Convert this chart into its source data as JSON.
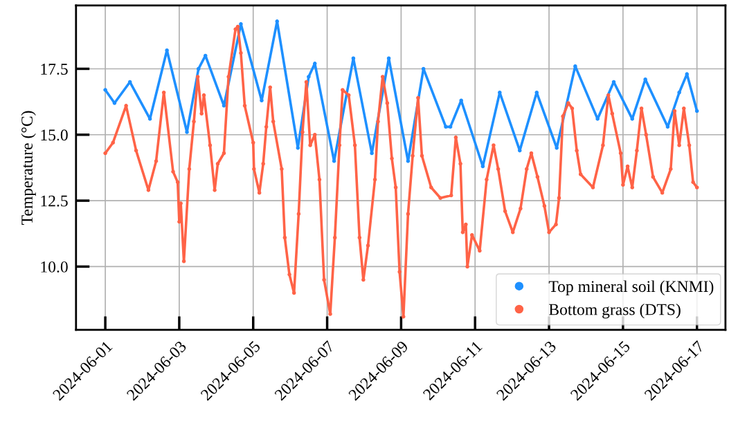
{
  "chart_data": {
    "type": "line",
    "ylabel": "Temperature (°C)",
    "marker": "circle",
    "grid": true,
    "legend": "bottom right",
    "xlim": [
      "2024-05-31T05:00",
      "2024-06-17T18:30"
    ],
    "xticks": [
      "2024-06-01",
      "2024-06-03",
      "2024-06-05",
      "2024-06-07",
      "2024-06-09",
      "2024-06-11",
      "2024-06-13",
      "2024-06-15",
      "2024-06-17"
    ],
    "ylim": [
      7.6,
      19.9
    ],
    "yticks": [
      {
        "value": 10,
        "label": "10.0"
      },
      {
        "value": 12.5,
        "label": "12.5"
      },
      {
        "value": 15,
        "label": "15.0"
      },
      {
        "value": 17.5,
        "label": "17.5"
      }
    ],
    "series": [
      {
        "name": "Top mineral soil (KNMI)",
        "color": "#1e90ff",
        "x": [
          "2024-06-01T00:00",
          "2024-06-01T06:00",
          "2024-06-01T16:00",
          "2024-06-02T05:00",
          "2024-06-02T16:00",
          "2024-06-03T05:00",
          "2024-06-03T12:30",
          "2024-06-03T17:00",
          "2024-06-04T05:00",
          "2024-06-04T16:00",
          "2024-06-05T05:30",
          "2024-06-05T15:30",
          "2024-06-06T05:00",
          "2024-06-06T12:00",
          "2024-06-06T16:00",
          "2024-06-07T04:30",
          "2024-06-07T17:00",
          "2024-06-08T05:00",
          "2024-06-08T16:00",
          "2024-06-09T04:30",
          "2024-06-09T14:30",
          "2024-06-10T05:00",
          "2024-06-10T08:00",
          "2024-06-10T15:00",
          "2024-06-11T05:00",
          "2024-06-11T16:00",
          "2024-06-12T05:00",
          "2024-06-12T16:00",
          "2024-06-13T05:00",
          "2024-06-13T17:00",
          "2024-06-14T07:30",
          "2024-06-14T18:00",
          "2024-06-15T06:00",
          "2024-06-15T14:30",
          "2024-06-16T05:00",
          "2024-06-16T12:30",
          "2024-06-16T17:30",
          "2024-06-17T00:00"
        ],
        "values": [
          16.7,
          16.2,
          17.0,
          15.6,
          18.2,
          15.1,
          17.5,
          18.0,
          16.1,
          19.2,
          16.3,
          19.3,
          14.5,
          17.2,
          17.7,
          14.0,
          17.9,
          14.3,
          17.9,
          14.0,
          17.5,
          15.3,
          15.3,
          16.3,
          13.8,
          16.6,
          14.4,
          16.6,
          14.5,
          17.6,
          15.6,
          17.0,
          15.6,
          17.1,
          15.3,
          16.6,
          17.3,
          15.9
        ]
      },
      {
        "name": "Bottom grass (DTS)",
        "color": "#ff6347",
        "x": [
          "2024-06-01T00:00",
          "2024-06-01T05:00",
          "2024-06-01T13:30",
          "2024-06-01T20:00",
          "2024-06-02T04:00",
          "2024-06-02T09:00",
          "2024-06-02T14:00",
          "2024-06-02T20:00",
          "2024-06-02T23:00",
          "2024-06-03T00:00",
          "2024-06-03T01:00",
          "2024-06-03T03:00",
          "2024-06-03T06:30",
          "2024-06-03T09:30",
          "2024-06-03T12:00",
          "2024-06-03T14:30",
          "2024-06-03T16:00",
          "2024-06-03T20:00",
          "2024-06-03T23:00",
          "2024-06-04T01:00",
          "2024-06-04T05:00",
          "2024-06-04T08:00",
          "2024-06-04T12:30",
          "2024-06-04T14:00",
          "2024-06-04T16:00",
          "2024-06-04T18:30",
          "2024-06-05T00:00",
          "2024-06-05T00:30",
          "2024-06-05T04:00",
          "2024-06-05T06:30",
          "2024-06-05T08:30",
          "2024-06-05T11:00",
          "2024-06-05T13:00",
          "2024-06-05T18:30",
          "2024-06-05T20:30",
          "2024-06-05T23:30",
          "2024-06-06T02:30",
          "2024-06-06T05:30",
          "2024-06-06T08:00",
          "2024-06-06T10:30",
          "2024-06-06T13:00",
          "2024-06-06T16:00",
          "2024-06-06T19:00",
          "2024-06-06T22:00",
          "2024-06-07T02:00",
          "2024-06-07T05:00",
          "2024-06-07T08:00",
          "2024-06-07T10:00",
          "2024-06-07T14:00",
          "2024-06-07T18:00",
          "2024-06-07T21:00",
          "2024-06-07T23:30",
          "2024-06-08T02:30",
          "2024-06-08T07:00",
          "2024-06-08T09:00",
          "2024-06-08T12:00",
          "2024-06-08T15:00",
          "2024-06-08T18:00",
          "2024-06-08T20:30",
          "2024-06-08T23:00",
          "2024-06-09T01:30",
          "2024-06-09T04:30",
          "2024-06-09T07:30",
          "2024-06-09T11:00",
          "2024-06-09T13:30",
          "2024-06-09T19:30",
          "2024-06-10T01:30",
          "2024-06-10T08:30",
          "2024-06-10T11:30",
          "2024-06-10T14:30",
          "2024-06-10T16:00",
          "2024-06-10T18:00",
          "2024-06-10T19:00",
          "2024-06-10T22:00",
          "2024-06-11T03:00",
          "2024-06-11T07:30",
          "2024-06-11T12:00",
          "2024-06-11T15:00",
          "2024-06-11T19:30",
          "2024-06-12T00:30",
          "2024-06-12T05:30",
          "2024-06-12T09:30",
          "2024-06-12T12:30",
          "2024-06-12T16:30",
          "2024-06-12T21:00",
          "2024-06-13T00:00",
          "2024-06-13T04:30",
          "2024-06-13T06:30",
          "2024-06-13T09:00",
          "2024-06-13T12:30",
          "2024-06-13T15:00",
          "2024-06-13T18:00",
          "2024-06-13T20:30",
          "2024-06-14T04:30",
          "2024-06-14T11:00",
          "2024-06-14T14:30",
          "2024-06-14T17:00",
          "2024-06-14T22:30",
          "2024-06-15T00:00",
          "2024-06-15T03:00",
          "2024-06-15T06:00",
          "2024-06-15T09:00",
          "2024-06-15T12:00",
          "2024-06-15T15:00",
          "2024-06-15T19:30",
          "2024-06-16T01:30",
          "2024-06-16T07:00",
          "2024-06-16T09:30",
          "2024-06-16T12:30",
          "2024-06-16T15:30",
          "2024-06-16T19:00",
          "2024-06-16T21:30",
          "2024-06-17T00:00"
        ],
        "values": [
          14.3,
          14.7,
          16.1,
          14.4,
          12.9,
          14.0,
          16.6,
          13.6,
          13.2,
          11.7,
          12.4,
          10.2,
          13.7,
          15.5,
          17.2,
          15.8,
          16.5,
          14.6,
          12.9,
          13.9,
          14.3,
          17.2,
          19.0,
          19.1,
          18.1,
          16.1,
          14.7,
          13.7,
          12.8,
          13.9,
          15.3,
          16.8,
          15.5,
          13.7,
          11.1,
          9.7,
          9.0,
          12.0,
          15.1,
          17.0,
          14.6,
          15.0,
          13.3,
          9.5,
          8.2,
          11.1,
          14.6,
          16.7,
          16.5,
          14.6,
          11.1,
          9.5,
          10.8,
          13.3,
          15.5,
          17.2,
          16.2,
          14.1,
          13.0,
          9.8,
          8.1,
          12.0,
          14.2,
          16.4,
          14.2,
          13.0,
          12.6,
          12.7,
          14.9,
          13.9,
          11.3,
          11.6,
          10.0,
          11.2,
          10.6,
          13.3,
          14.6,
          13.7,
          12.1,
          11.3,
          12.2,
          13.7,
          14.3,
          13.4,
          12.3,
          11.3,
          11.6,
          12.6,
          15.7,
          16.2,
          16.0,
          14.4,
          13.5,
          13.0,
          14.6,
          16.5,
          15.8,
          14.3,
          13.1,
          13.8,
          13.0,
          14.4,
          16.0,
          15.0,
          13.4,
          12.8,
          13.7,
          15.9,
          14.6,
          16.0,
          14.6,
          13.2,
          13.0
        ]
      }
    ]
  }
}
